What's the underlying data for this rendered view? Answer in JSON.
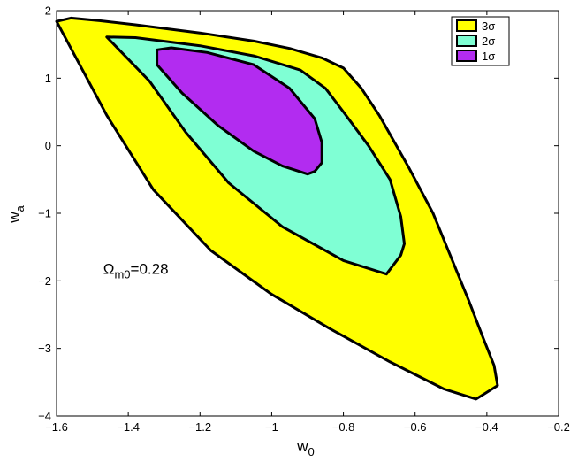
{
  "chart_data": {
    "type": "contour",
    "xlabel": "w",
    "xlabel_sub": "0",
    "ylabel": "w",
    "ylabel_sub": "a",
    "xlim": [
      -1.6,
      -0.2
    ],
    "ylim": [
      -4,
      2
    ],
    "x_ticks": [
      -1.6,
      -1.4,
      -1.2,
      -1,
      -0.8,
      -0.6,
      -0.4,
      -0.2
    ],
    "x_tick_labels": [
      "−1.6",
      "−1.4",
      "−1.2",
      "−1",
      "−0.8",
      "−0.6",
      "−0.4",
      "−0.2"
    ],
    "y_ticks": [
      -4,
      -3,
      -2,
      -1,
      0,
      1,
      2
    ],
    "y_tick_labels": [
      "−4",
      "−3",
      "−2",
      "−1",
      "0",
      "1",
      "2"
    ],
    "grid": false,
    "legend_position": "top-right",
    "annotation": {
      "prefix": "Ω",
      "sub": "m0",
      "suffix": "=0.28",
      "x": -1.47,
      "y": -1.9
    },
    "series": [
      {
        "name": "3σ",
        "color": "#ffff00",
        "points": [
          [
            -1.6,
            1.84
          ],
          [
            -1.56,
            1.89
          ],
          [
            -1.48,
            1.85
          ],
          [
            -1.38,
            1.79
          ],
          [
            -1.2,
            1.67
          ],
          [
            -1.05,
            1.55
          ],
          [
            -0.95,
            1.44
          ],
          [
            -0.86,
            1.3
          ],
          [
            -0.8,
            1.15
          ],
          [
            -0.75,
            0.85
          ],
          [
            -0.7,
            0.45
          ],
          [
            -0.62,
            -0.3
          ],
          [
            -0.55,
            -1.0
          ],
          [
            -0.5,
            -1.65
          ],
          [
            -0.45,
            -2.3
          ],
          [
            -0.41,
            -2.85
          ],
          [
            -0.38,
            -3.25
          ],
          [
            -0.37,
            -3.55
          ],
          [
            -0.43,
            -3.75
          ],
          [
            -0.52,
            -3.6
          ],
          [
            -0.67,
            -3.2
          ],
          [
            -0.84,
            -2.7
          ],
          [
            -1.0,
            -2.2
          ],
          [
            -1.17,
            -1.55
          ],
          [
            -1.33,
            -0.65
          ],
          [
            -1.46,
            0.45
          ],
          [
            -1.6,
            1.84
          ]
        ]
      },
      {
        "name": "2σ",
        "color": "#7fffd4",
        "points": [
          [
            -1.46,
            1.61
          ],
          [
            -1.38,
            1.6
          ],
          [
            -1.2,
            1.48
          ],
          [
            -1.05,
            1.33
          ],
          [
            -0.92,
            1.12
          ],
          [
            -0.85,
            0.85
          ],
          [
            -0.8,
            0.5
          ],
          [
            -0.73,
            0.0
          ],
          [
            -0.67,
            -0.5
          ],
          [
            -0.64,
            -1.05
          ],
          [
            -0.63,
            -1.45
          ],
          [
            -0.64,
            -1.62
          ],
          [
            -0.68,
            -1.9
          ],
          [
            -0.8,
            -1.7
          ],
          [
            -0.97,
            -1.2
          ],
          [
            -1.12,
            -0.55
          ],
          [
            -1.24,
            0.2
          ],
          [
            -1.34,
            0.95
          ],
          [
            -1.46,
            1.61
          ]
        ]
      },
      {
        "name": "1σ",
        "color": "#b22cf0",
        "points": [
          [
            -1.32,
            1.42
          ],
          [
            -1.28,
            1.45
          ],
          [
            -1.18,
            1.38
          ],
          [
            -1.05,
            1.2
          ],
          [
            -0.95,
            0.85
          ],
          [
            -0.88,
            0.4
          ],
          [
            -0.86,
            0.05
          ],
          [
            -0.86,
            -0.25
          ],
          [
            -0.88,
            -0.38
          ],
          [
            -0.9,
            -0.42
          ],
          [
            -0.97,
            -0.3
          ],
          [
            -1.05,
            -0.08
          ],
          [
            -1.15,
            0.3
          ],
          [
            -1.25,
            0.78
          ],
          [
            -1.32,
            1.2
          ],
          [
            -1.32,
            1.42
          ]
        ]
      }
    ]
  }
}
